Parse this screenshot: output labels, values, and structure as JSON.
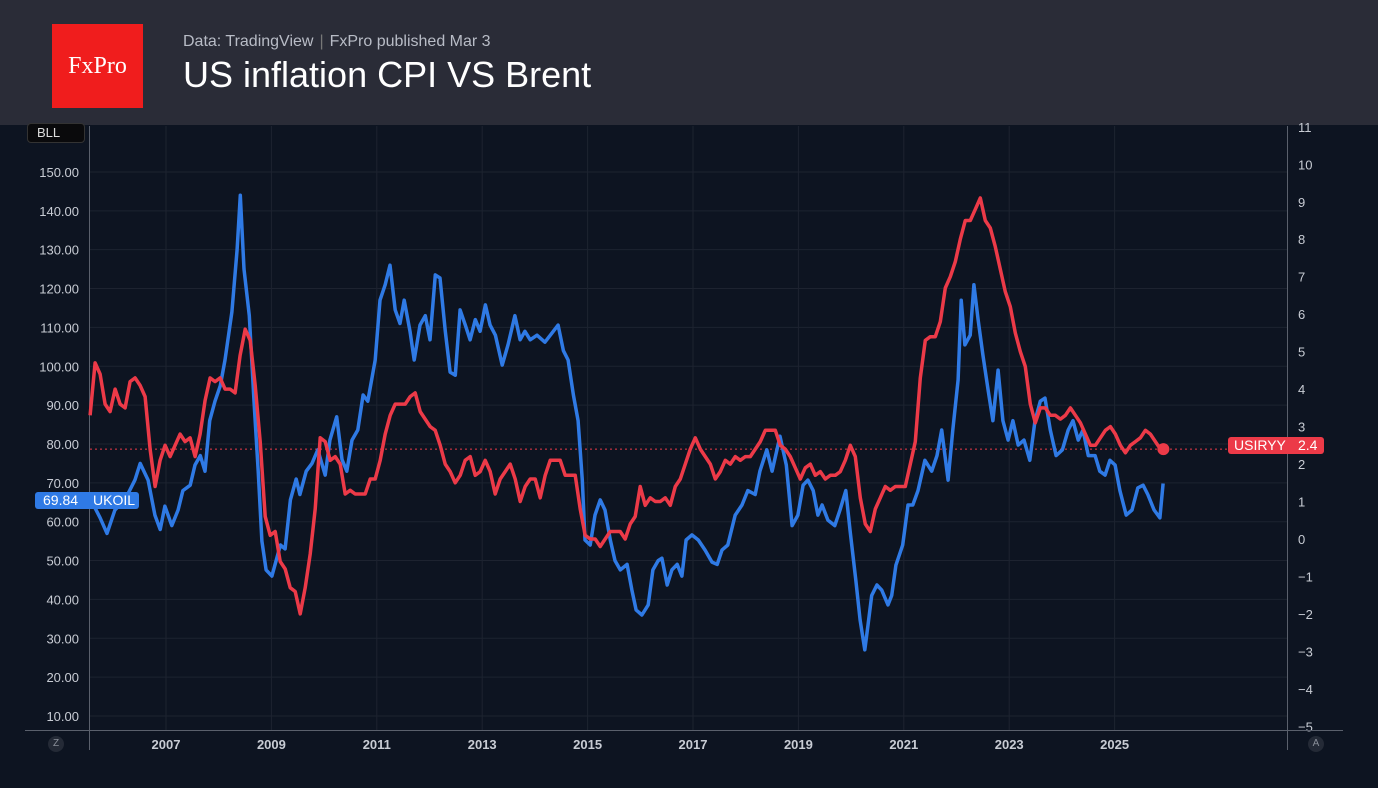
{
  "header": {
    "source": "Data: TradingView",
    "publisher": "FxPro published Mar 3",
    "title": "US inflation CPI VS Brent",
    "logo": "FxPro"
  },
  "left_axis_unit": "BLL",
  "badges": {
    "ukoil_value": "69.84",
    "ukoil_label": "UKOIL",
    "usiryy_label": "USIRYY",
    "usiryy_value": "2.4"
  },
  "corner_buttons": {
    "left": "Z",
    "right": "A"
  },
  "colors": {
    "brent": "#2f7ae5",
    "cpi": "#ec3a48"
  },
  "chart_data": {
    "type": "line",
    "title": "US inflation CPI VS Brent",
    "x_ticks": [
      "2007",
      "2009",
      "2011",
      "2013",
      "2015",
      "2017",
      "2019",
      "2021",
      "2023",
      "2025"
    ],
    "left_ticks": [
      "150.00",
      "140.00",
      "130.00",
      "120.00",
      "110.00",
      "100.00",
      "90.00",
      "80.00",
      "70.00",
      "60.00",
      "50.00",
      "40.00",
      "30.00",
      "20.00",
      "10.00"
    ],
    "right_ticks": [
      "11",
      "10",
      "9",
      "8",
      "7",
      "6",
      "5",
      "4",
      "3",
      "2",
      "1",
      "0",
      "−1",
      "−2",
      "−3",
      "−4",
      "−5"
    ],
    "left_ylim": [
      10,
      150
    ],
    "right_ylim": [
      -5,
      11
    ],
    "xlim": [
      2005.56,
      2028.0
    ],
    "series": [
      {
        "name": "UKOIL",
        "axis": "left",
        "last": 69.84,
        "points": [
          [
            2005.56,
            66
          ],
          [
            2005.75,
            61
          ],
          [
            2005.88,
            57
          ],
          [
            2006.03,
            63
          ],
          [
            2006.22,
            65.6
          ],
          [
            2006.41,
            70.7
          ],
          [
            2006.51,
            75
          ],
          [
            2006.66,
            70.7
          ],
          [
            2006.79,
            61.7
          ],
          [
            2006.89,
            58
          ],
          [
            2006.98,
            64
          ],
          [
            2007.11,
            59
          ],
          [
            2007.23,
            63
          ],
          [
            2007.32,
            68
          ],
          [
            2007.46,
            69.4
          ],
          [
            2007.55,
            74.6
          ],
          [
            2007.65,
            77
          ],
          [
            2007.74,
            73
          ],
          [
            2007.83,
            86
          ],
          [
            2007.93,
            91
          ],
          [
            2008.03,
            95
          ],
          [
            2008.12,
            101.6
          ],
          [
            2008.25,
            114
          ],
          [
            2008.35,
            130
          ],
          [
            2008.41,
            144
          ],
          [
            2008.48,
            125
          ],
          [
            2008.58,
            113
          ],
          [
            2008.67,
            91
          ],
          [
            2008.75,
            73
          ],
          [
            2008.82,
            55
          ],
          [
            2008.9,
            47.6
          ],
          [
            2009.01,
            46
          ],
          [
            2009.17,
            54
          ],
          [
            2009.26,
            53
          ],
          [
            2009.36,
            65.6
          ],
          [
            2009.47,
            71
          ],
          [
            2009.54,
            67
          ],
          [
            2009.66,
            73
          ],
          [
            2009.77,
            75
          ],
          [
            2009.88,
            78.5
          ],
          [
            2010.02,
            72
          ],
          [
            2010.11,
            81
          ],
          [
            2010.24,
            87
          ],
          [
            2010.34,
            76
          ],
          [
            2010.43,
            73
          ],
          [
            2010.53,
            81
          ],
          [
            2010.64,
            83.6
          ],
          [
            2010.74,
            92.6
          ],
          [
            2010.83,
            91
          ],
          [
            2010.97,
            101.6
          ],
          [
            2011.06,
            117
          ],
          [
            2011.16,
            121
          ],
          [
            2011.25,
            126
          ],
          [
            2011.35,
            114.5
          ],
          [
            2011.44,
            111
          ],
          [
            2011.52,
            117
          ],
          [
            2011.63,
            109
          ],
          [
            2011.71,
            101.6
          ],
          [
            2011.82,
            110.6
          ],
          [
            2011.92,
            113
          ],
          [
            2012.01,
            106.8
          ],
          [
            2012.11,
            123.5
          ],
          [
            2012.2,
            122.7
          ],
          [
            2012.3,
            109
          ],
          [
            2012.39,
            98.5
          ],
          [
            2012.49,
            97.7
          ],
          [
            2012.58,
            114.5
          ],
          [
            2012.68,
            110.6
          ],
          [
            2012.77,
            106.8
          ],
          [
            2012.87,
            112
          ],
          [
            2012.96,
            109
          ],
          [
            2013.06,
            115.8
          ],
          [
            2013.15,
            110.6
          ],
          [
            2013.25,
            108
          ],
          [
            2013.38,
            100.3
          ],
          [
            2013.49,
            105.5
          ],
          [
            2013.62,
            113
          ],
          [
            2013.72,
            106.8
          ],
          [
            2013.81,
            109
          ],
          [
            2013.91,
            106.8
          ],
          [
            2014.04,
            108
          ],
          [
            2014.19,
            106.2
          ],
          [
            2014.35,
            109
          ],
          [
            2014.44,
            110.6
          ],
          [
            2014.54,
            104
          ],
          [
            2014.63,
            101.6
          ],
          [
            2014.73,
            92.6
          ],
          [
            2014.82,
            86
          ],
          [
            2014.9,
            70.7
          ],
          [
            2014.95,
            55.3
          ],
          [
            2015.05,
            54
          ],
          [
            2015.14,
            61.7
          ],
          [
            2015.24,
            65.6
          ],
          [
            2015.33,
            63
          ],
          [
            2015.43,
            55.3
          ],
          [
            2015.52,
            50
          ],
          [
            2015.62,
            47.6
          ],
          [
            2015.75,
            49
          ],
          [
            2015.84,
            42.4
          ],
          [
            2015.92,
            37.3
          ],
          [
            2016.03,
            36
          ],
          [
            2016.15,
            38.6
          ],
          [
            2016.24,
            47.6
          ],
          [
            2016.34,
            50
          ],
          [
            2016.41,
            50.6
          ],
          [
            2016.51,
            43.7
          ],
          [
            2016.6,
            47.6
          ],
          [
            2016.7,
            49
          ],
          [
            2016.79,
            46
          ],
          [
            2016.87,
            55.3
          ],
          [
            2016.98,
            56.6
          ],
          [
            2017.1,
            55.3
          ],
          [
            2017.23,
            52.7
          ],
          [
            2017.36,
            49.6
          ],
          [
            2017.46,
            49
          ],
          [
            2017.55,
            52.7
          ],
          [
            2017.66,
            54
          ],
          [
            2017.8,
            61.7
          ],
          [
            2017.93,
            64.3
          ],
          [
            2018.04,
            68
          ],
          [
            2018.18,
            67
          ],
          [
            2018.27,
            73
          ],
          [
            2018.4,
            78.5
          ],
          [
            2018.5,
            73
          ],
          [
            2018.65,
            82
          ],
          [
            2018.77,
            74.6
          ],
          [
            2018.88,
            59
          ],
          [
            2018.99,
            61.7
          ],
          [
            2019.09,
            69.4
          ],
          [
            2019.18,
            70.7
          ],
          [
            2019.28,
            68
          ],
          [
            2019.37,
            61.7
          ],
          [
            2019.45,
            64.3
          ],
          [
            2019.56,
            60.4
          ],
          [
            2019.69,
            59
          ],
          [
            2019.79,
            63
          ],
          [
            2019.9,
            68
          ],
          [
            2019.98,
            57.9
          ],
          [
            2020.09,
            45
          ],
          [
            2020.17,
            34.7
          ],
          [
            2020.26,
            27
          ],
          [
            2020.32,
            33.4
          ],
          [
            2020.39,
            41
          ],
          [
            2020.49,
            43.7
          ],
          [
            2020.58,
            42.4
          ],
          [
            2020.7,
            38.6
          ],
          [
            2020.77,
            41
          ],
          [
            2020.85,
            48.8
          ],
          [
            2020.98,
            54
          ],
          [
            2021.08,
            64.3
          ],
          [
            2021.17,
            64.3
          ],
          [
            2021.27,
            68
          ],
          [
            2021.4,
            75.8
          ],
          [
            2021.53,
            73
          ],
          [
            2021.63,
            77
          ],
          [
            2021.72,
            83.6
          ],
          [
            2021.84,
            70.7
          ],
          [
            2021.93,
            83.6
          ],
          [
            2022.03,
            96.5
          ],
          [
            2022.09,
            117
          ],
          [
            2022.16,
            105.5
          ],
          [
            2022.26,
            108
          ],
          [
            2022.33,
            121
          ],
          [
            2022.41,
            112
          ],
          [
            2022.5,
            102.9
          ],
          [
            2022.6,
            93.9
          ],
          [
            2022.69,
            86
          ],
          [
            2022.79,
            99
          ],
          [
            2022.88,
            86
          ],
          [
            2022.98,
            81
          ],
          [
            2023.07,
            86
          ],
          [
            2023.17,
            79.7
          ],
          [
            2023.28,
            81
          ],
          [
            2023.39,
            75.8
          ],
          [
            2023.49,
            86
          ],
          [
            2023.59,
            91
          ],
          [
            2023.68,
            91.8
          ],
          [
            2023.78,
            83.6
          ],
          [
            2023.89,
            77
          ],
          [
            2024.01,
            78.5
          ],
          [
            2024.12,
            83.6
          ],
          [
            2024.21,
            86
          ],
          [
            2024.31,
            81
          ],
          [
            2024.4,
            83.6
          ],
          [
            2024.5,
            77
          ],
          [
            2024.63,
            77
          ],
          [
            2024.72,
            73
          ],
          [
            2024.82,
            72
          ],
          [
            2024.91,
            75.8
          ],
          [
            2025.01,
            74.6
          ],
          [
            2025.1,
            68
          ],
          [
            2025.22,
            61.7
          ],
          [
            2025.33,
            63
          ],
          [
            2025.44,
            68.7
          ],
          [
            2025.54,
            69.4
          ],
          [
            2025.63,
            67
          ],
          [
            2025.75,
            63
          ],
          [
            2025.86,
            61
          ],
          [
            2025.92,
            69.84
          ]
        ]
      },
      {
        "name": "USIRYY",
        "axis": "right",
        "last": 2.4,
        "x_start": 2005.56,
        "x_step": 0.0949,
        "values": [
          3.3,
          4.7,
          4.4,
          3.6,
          3.4,
          4.0,
          3.6,
          3.5,
          4.2,
          4.3,
          4.1,
          3.8,
          2.4,
          1.4,
          2.1,
          2.5,
          2.2,
          2.5,
          2.8,
          2.6,
          2.7,
          2.2,
          2.8,
          3.7,
          4.3,
          4.2,
          4.3,
          4.0,
          4.0,
          3.9,
          4.9,
          5.6,
          5.3,
          4.1,
          2.6,
          0.6,
          0.1,
          0.2,
          -0.6,
          -0.8,
          -1.3,
          -1.4,
          -2.0,
          -1.3,
          -0.4,
          0.8,
          2.7,
          2.6,
          2.1,
          2.2,
          2.0,
          1.2,
          1.3,
          1.2,
          1.2,
          1.2,
          1.6,
          1.6,
          2.1,
          2.8,
          3.3,
          3.6,
          3.6,
          3.6,
          3.8,
          3.9,
          3.4,
          3.2,
          3.0,
          2.9,
          2.5,
          2.0,
          1.8,
          1.5,
          1.7,
          2.1,
          2.2,
          1.7,
          1.8,
          2.1,
          1.8,
          1.2,
          1.6,
          1.8,
          2.0,
          1.6,
          1.0,
          1.4,
          1.6,
          1.6,
          1.1,
          1.7,
          2.1,
          2.1,
          2.1,
          1.7,
          1.7,
          1.7,
          0.8,
          0.1,
          0.0,
          0.0,
          -0.2,
          0.0,
          0.2,
          0.2,
          0.2,
          0.0,
          0.4,
          0.6,
          1.4,
          0.9,
          1.1,
          1.0,
          1.0,
          1.1,
          0.9,
          1.4,
          1.6,
          2.0,
          2.4,
          2.7,
          2.4,
          2.2,
          2.0,
          1.6,
          1.8,
          2.1,
          2.0,
          2.2,
          2.1,
          2.2,
          2.2,
          2.4,
          2.6,
          2.9,
          2.9,
          2.9,
          2.5,
          2.4,
          2.2,
          1.9,
          1.6,
          1.9,
          2.0,
          1.7,
          1.8,
          1.6,
          1.7,
          1.7,
          1.8,
          2.1,
          2.5,
          2.2,
          1.1,
          0.4,
          0.2,
          0.8,
          1.1,
          1.4,
          1.3,
          1.4,
          1.4,
          1.4,
          2.0,
          2.6,
          4.3,
          5.3,
          5.4,
          5.4,
          5.8,
          6.7,
          7.0,
          7.4,
          8.0,
          8.5,
          8.5,
          8.8,
          9.1,
          8.5,
          8.3,
          7.8,
          7.2,
          6.6,
          6.2,
          5.5,
          5.0,
          4.6,
          3.6,
          3.1,
          3.5,
          3.5,
          3.3,
          3.3,
          3.2,
          3.3,
          3.5,
          3.3,
          3.1,
          2.8,
          2.5,
          2.5,
          2.7,
          2.9,
          3.0,
          2.8,
          2.5,
          2.3,
          2.5,
          2.6,
          2.7,
          2.9,
          2.8,
          2.6,
          2.4
        ]
      }
    ]
  }
}
